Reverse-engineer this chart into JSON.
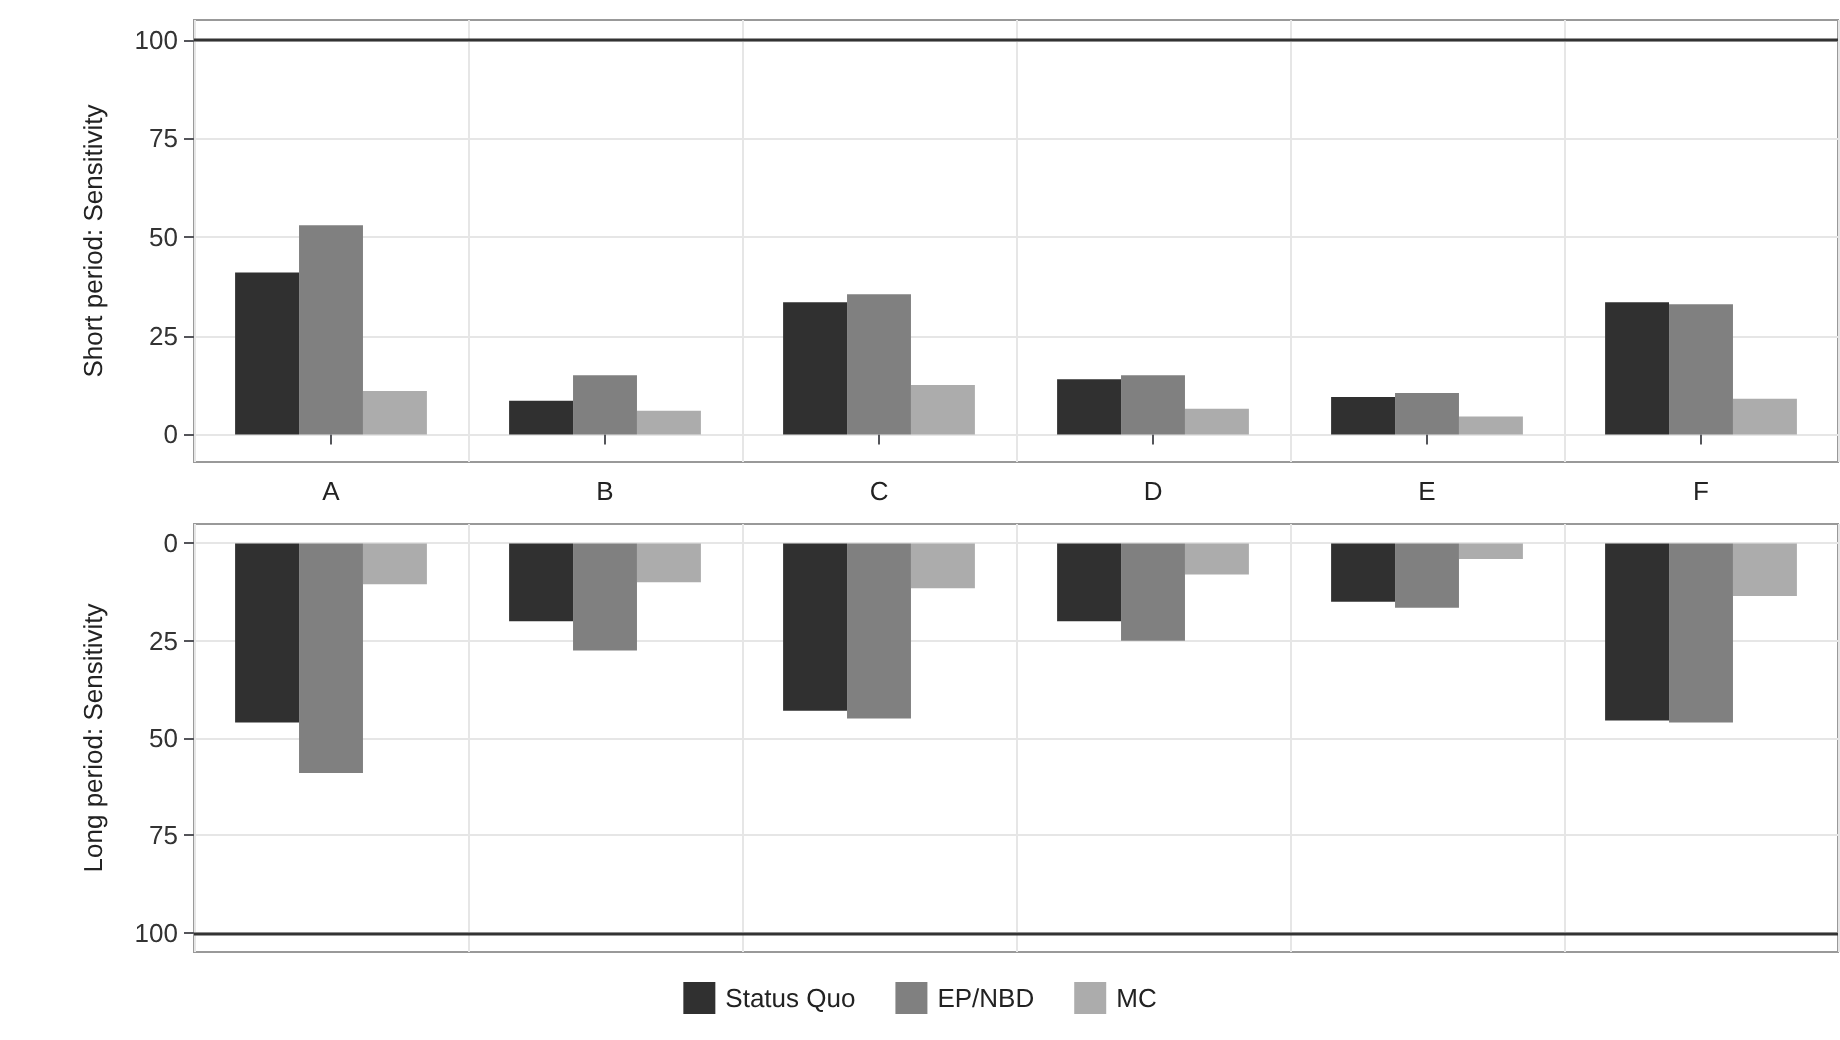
{
  "chart_data": [
    {
      "type": "bar",
      "ylabel": "Short period: Sensitivity",
      "categories": [
        "A",
        "B",
        "C",
        "D",
        "E",
        "F"
      ],
      "series": [
        {
          "color": "#303030",
          "values": [
            41,
            8.5,
            33.5,
            14,
            9.5,
            33.5
          ]
        },
        {
          "color": "#808080",
          "values": [
            53,
            15,
            35.5,
            15,
            10.5,
            33
          ]
        },
        {
          "color": "#acacac",
          "values": [
            11,
            6,
            12.5,
            6.5,
            4.5,
            9
          ]
        }
      ],
      "ylim": [
        -7,
        105
      ],
      "yticks": [
        0,
        25,
        50,
        75,
        100
      ],
      "grid": true,
      "legend": false,
      "ref_lines": [
        {
          "axis": "y",
          "value": 100,
          "color": "#333333"
        }
      ]
    },
    {
      "type": "bar",
      "ylabel": "Long period: Sensitivity",
      "categories": [
        null,
        null,
        null,
        null,
        null,
        null
      ],
      "series": [
        {
          "name": "Status Quo",
          "color": "#303030",
          "values": [
            46,
            20,
            43,
            20,
            15,
            45.5
          ]
        },
        {
          "name": "EP/NBD",
          "color": "#808080",
          "values": [
            59,
            27.5,
            45,
            25,
            16.5,
            46
          ]
        },
        {
          "name": "MC",
          "color": "#acacac",
          "values": [
            10.5,
            10,
            11.5,
            8,
            4,
            13.5
          ]
        }
      ],
      "ylim": [
        105,
        -5
      ],
      "yticks": [
        0,
        25,
        50,
        75,
        100
      ],
      "grid": true,
      "legend": "bottom",
      "tick_labels": "y",
      "ref_lines": [
        {
          "axis": "y",
          "value": 100,
          "color": "#333333"
        }
      ]
    }
  ]
}
